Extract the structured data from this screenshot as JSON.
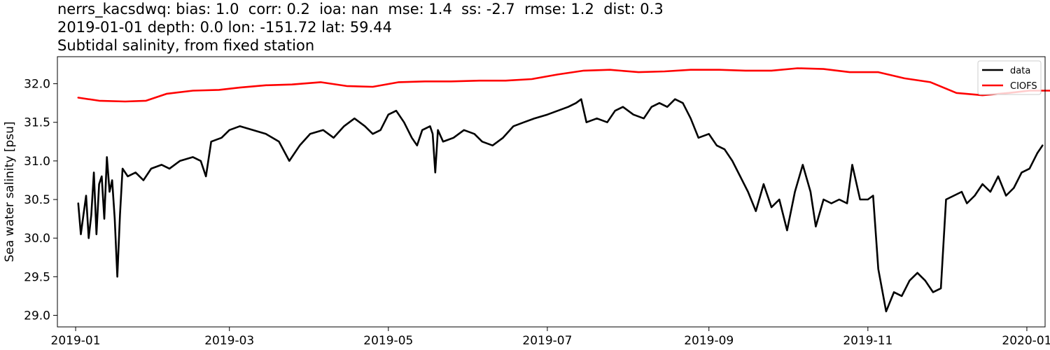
{
  "title_lines": [
    "nerrs_kacsdwq: bias: 1.0  corr: 0.2  ioa: nan  mse: 1.4  ss: -2.7  rmse: 1.2  dist: 0.3",
    "2019-01-01 depth: 0.0 lon: -151.72 lat: 59.44",
    "Subtidal salinity, from fixed station"
  ],
  "chart_data": {
    "type": "line",
    "xlabel": "",
    "ylabel": "Sea water salinity [psu]",
    "xlim": [
      "2018-12-25",
      "2020-01-08"
    ],
    "ylim": [
      28.85,
      32.35
    ],
    "x_ticks": [
      "2019-01-01",
      "2019-03-01",
      "2019-05-01",
      "2019-07-01",
      "2019-09-01",
      "2019-11-01",
      "2020-01-01"
    ],
    "x_tick_labels": [
      "2019-01",
      "2019-03",
      "2019-05",
      "2019-07",
      "2019-09",
      "2019-11",
      "2020-01"
    ],
    "y_ticks": [
      29.0,
      29.5,
      30.0,
      30.5,
      31.0,
      31.5,
      32.0
    ],
    "y_tick_labels": [
      "29.0",
      "29.5",
      "30.0",
      "30.5",
      "31.0",
      "31.5",
      "32.0"
    ],
    "legend_position": "upper right",
    "grid": false,
    "series": [
      {
        "name": "data",
        "color": "#000000",
        "points": [
          [
            "2019-01-02",
            30.45
          ],
          [
            "2019-01-03",
            30.05
          ],
          [
            "2019-01-04",
            30.3
          ],
          [
            "2019-01-05",
            30.55
          ],
          [
            "2019-01-06",
            30.0
          ],
          [
            "2019-01-07",
            30.3
          ],
          [
            "2019-01-08",
            30.85
          ],
          [
            "2019-01-09",
            30.05
          ],
          [
            "2019-01-10",
            30.7
          ],
          [
            "2019-01-11",
            30.8
          ],
          [
            "2019-01-12",
            30.25
          ],
          [
            "2019-01-13",
            31.05
          ],
          [
            "2019-01-14",
            30.6
          ],
          [
            "2019-01-15",
            30.75
          ],
          [
            "2019-01-16",
            30.25
          ],
          [
            "2019-01-17",
            29.5
          ],
          [
            "2019-01-18",
            30.3
          ],
          [
            "2019-01-19",
            30.9
          ],
          [
            "2019-01-21",
            30.8
          ],
          [
            "2019-01-24",
            30.85
          ],
          [
            "2019-01-27",
            30.75
          ],
          [
            "2019-01-30",
            30.9
          ],
          [
            "2019-02-03",
            30.95
          ],
          [
            "2019-02-06",
            30.9
          ],
          [
            "2019-02-10",
            31.0
          ],
          [
            "2019-02-15",
            31.05
          ],
          [
            "2019-02-18",
            31.0
          ],
          [
            "2019-02-20",
            30.8
          ],
          [
            "2019-02-22",
            31.25
          ],
          [
            "2019-02-26",
            31.3
          ],
          [
            "2019-03-01",
            31.4
          ],
          [
            "2019-03-05",
            31.45
          ],
          [
            "2019-03-10",
            31.4
          ],
          [
            "2019-03-15",
            31.35
          ],
          [
            "2019-03-20",
            31.25
          ],
          [
            "2019-03-24",
            31.0
          ],
          [
            "2019-03-28",
            31.2
          ],
          [
            "2019-04-01",
            31.35
          ],
          [
            "2019-04-06",
            31.4
          ],
          [
            "2019-04-10",
            31.3
          ],
          [
            "2019-04-14",
            31.45
          ],
          [
            "2019-04-18",
            31.55
          ],
          [
            "2019-04-22",
            31.45
          ],
          [
            "2019-04-25",
            31.35
          ],
          [
            "2019-04-28",
            31.4
          ],
          [
            "2019-05-01",
            31.6
          ],
          [
            "2019-05-04",
            31.65
          ],
          [
            "2019-05-07",
            31.5
          ],
          [
            "2019-05-10",
            31.3
          ],
          [
            "2019-05-12",
            31.2
          ],
          [
            "2019-05-14",
            31.4
          ],
          [
            "2019-05-17",
            31.45
          ],
          [
            "2019-05-18",
            31.35
          ],
          [
            "2019-05-19",
            30.85
          ],
          [
            "2019-05-20",
            31.4
          ],
          [
            "2019-05-22",
            31.25
          ],
          [
            "2019-05-26",
            31.3
          ],
          [
            "2019-05-30",
            31.4
          ],
          [
            "2019-06-03",
            31.35
          ],
          [
            "2019-06-06",
            31.25
          ],
          [
            "2019-06-10",
            31.2
          ],
          [
            "2019-06-14",
            31.3
          ],
          [
            "2019-06-18",
            31.45
          ],
          [
            "2019-06-22",
            31.5
          ],
          [
            "2019-06-26",
            31.55
          ],
          [
            "2019-07-01",
            31.6
          ],
          [
            "2019-07-05",
            31.65
          ],
          [
            "2019-07-09",
            31.7
          ],
          [
            "2019-07-12",
            31.75
          ],
          [
            "2019-07-14",
            31.8
          ],
          [
            "2019-07-16",
            31.5
          ],
          [
            "2019-07-20",
            31.55
          ],
          [
            "2019-07-24",
            31.5
          ],
          [
            "2019-07-27",
            31.65
          ],
          [
            "2019-07-30",
            31.7
          ],
          [
            "2019-08-03",
            31.6
          ],
          [
            "2019-08-07",
            31.55
          ],
          [
            "2019-08-10",
            31.7
          ],
          [
            "2019-08-13",
            31.75
          ],
          [
            "2019-08-16",
            31.7
          ],
          [
            "2019-08-19",
            31.8
          ],
          [
            "2019-08-22",
            31.75
          ],
          [
            "2019-08-25",
            31.55
          ],
          [
            "2019-08-28",
            31.3
          ],
          [
            "2019-09-01",
            31.35
          ],
          [
            "2019-09-04",
            31.2
          ],
          [
            "2019-09-07",
            31.15
          ],
          [
            "2019-09-10",
            31.0
          ],
          [
            "2019-09-13",
            30.8
          ],
          [
            "2019-09-16",
            30.6
          ],
          [
            "2019-09-19",
            30.35
          ],
          [
            "2019-09-22",
            30.7
          ],
          [
            "2019-09-25",
            30.4
          ],
          [
            "2019-09-28",
            30.5
          ],
          [
            "2019-10-01",
            30.1
          ],
          [
            "2019-10-04",
            30.6
          ],
          [
            "2019-10-07",
            30.95
          ],
          [
            "2019-10-10",
            30.6
          ],
          [
            "2019-10-12",
            30.15
          ],
          [
            "2019-10-15",
            30.5
          ],
          [
            "2019-10-18",
            30.45
          ],
          [
            "2019-10-21",
            30.5
          ],
          [
            "2019-10-24",
            30.45
          ],
          [
            "2019-10-26",
            30.95
          ],
          [
            "2019-10-29",
            30.5
          ],
          [
            "2019-11-01",
            30.5
          ],
          [
            "2019-11-03",
            30.55
          ],
          [
            "2019-11-05",
            29.6
          ],
          [
            "2019-11-08",
            29.05
          ],
          [
            "2019-11-11",
            29.3
          ],
          [
            "2019-11-14",
            29.25
          ],
          [
            "2019-11-17",
            29.45
          ],
          [
            "2019-11-20",
            29.55
          ],
          [
            "2019-11-23",
            29.45
          ],
          [
            "2019-11-26",
            29.3
          ],
          [
            "2019-11-29",
            29.35
          ],
          [
            "2019-12-01",
            30.5
          ],
          [
            "2019-12-04",
            30.55
          ],
          [
            "2019-12-07",
            30.6
          ],
          [
            "2019-12-09",
            30.45
          ],
          [
            "2019-12-12",
            30.55
          ],
          [
            "2019-12-15",
            30.7
          ],
          [
            "2019-12-18",
            30.6
          ],
          [
            "2019-12-21",
            30.8
          ],
          [
            "2019-12-24",
            30.55
          ],
          [
            "2019-12-27",
            30.65
          ],
          [
            "2019-12-30",
            30.85
          ],
          [
            "2020-01-02",
            30.9
          ],
          [
            "2020-01-05",
            31.1
          ],
          [
            "2020-01-07",
            31.2
          ]
        ]
      },
      {
        "name": "CIOFS",
        "color": "#ff0000",
        "points": [
          [
            "2019-01-02",
            31.82
          ],
          [
            "2019-01-10",
            31.78
          ],
          [
            "2019-01-20",
            31.77
          ],
          [
            "2019-01-28",
            31.78
          ],
          [
            "2019-02-05",
            31.87
          ],
          [
            "2019-02-15",
            31.91
          ],
          [
            "2019-02-25",
            31.92
          ],
          [
            "2019-03-05",
            31.95
          ],
          [
            "2019-03-15",
            31.98
          ],
          [
            "2019-03-25",
            31.99
          ],
          [
            "2019-04-05",
            32.02
          ],
          [
            "2019-04-15",
            31.97
          ],
          [
            "2019-04-25",
            31.96
          ],
          [
            "2019-05-05",
            32.02
          ],
          [
            "2019-05-15",
            32.03
          ],
          [
            "2019-05-25",
            32.03
          ],
          [
            "2019-06-05",
            32.04
          ],
          [
            "2019-06-15",
            32.04
          ],
          [
            "2019-06-25",
            32.06
          ],
          [
            "2019-07-05",
            32.12
          ],
          [
            "2019-07-15",
            32.17
          ],
          [
            "2019-07-25",
            32.18
          ],
          [
            "2019-08-05",
            32.15
          ],
          [
            "2019-08-15",
            32.16
          ],
          [
            "2019-08-25",
            32.18
          ],
          [
            "2019-09-05",
            32.18
          ],
          [
            "2019-09-15",
            32.17
          ],
          [
            "2019-09-25",
            32.17
          ],
          [
            "2019-10-05",
            32.2
          ],
          [
            "2019-10-15",
            32.19
          ],
          [
            "2019-10-25",
            32.15
          ],
          [
            "2019-11-05",
            32.15
          ],
          [
            "2019-11-15",
            32.07
          ],
          [
            "2019-11-25",
            32.02
          ],
          [
            "2019-12-05",
            31.88
          ],
          [
            "2019-12-15",
            31.85
          ],
          [
            "2019-12-25",
            31.88
          ],
          [
            "2020-01-02",
            31.91
          ],
          [
            "2020-01-10",
            31.91
          ],
          [
            "2020-01-14",
            31.8
          ],
          [
            "2020-01-16",
            31.77
          ]
        ]
      }
    ]
  }
}
